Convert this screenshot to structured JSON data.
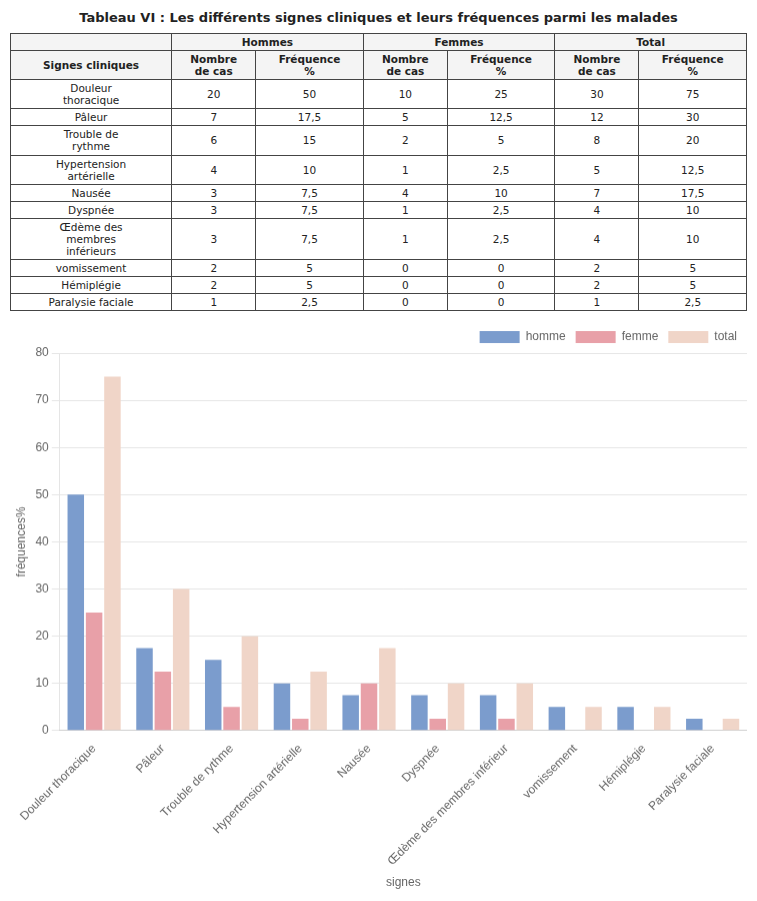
{
  "chart_data": [
    {
      "type": "table",
      "title": "Tableau VI : Les différents signes cliniques et leurs fréquences parmi les malades",
      "column_groups": [
        null,
        "Hommes",
        "Femmes",
        "Total"
      ],
      "columns": [
        "Signes cliniques",
        "Nombre\nde cas",
        "Fréquence\n%",
        "Nombre\nde cas",
        "Fréquence\n%",
        "Nombre\nde cas",
        "Fréquence\n%"
      ],
      "rows": [
        [
          "Douleur\nthoracique",
          "20",
          "50",
          "10",
          "25",
          "30",
          "75"
        ],
        [
          "Pâleur",
          "7",
          "17,5",
          "5",
          "12,5",
          "12",
          "30"
        ],
        [
          "Trouble de\nrythme",
          "6",
          "15",
          "2",
          "5",
          "8",
          "20"
        ],
        [
          "Hypertension\nartérielle",
          "4",
          "10",
          "1",
          "2,5",
          "5",
          "12,5"
        ],
        [
          "Nausée",
          "3",
          "7,5",
          "4",
          "10",
          "7",
          "17,5"
        ],
        [
          "Dyspnée",
          "3",
          "7,5",
          "1",
          "2,5",
          "4",
          "10"
        ],
        [
          "Œdème des\nmembres\ninférieurs",
          "3",
          "7,5",
          "1",
          "2,5",
          "4",
          "10"
        ],
        [
          "vomissement",
          "2",
          "5",
          "0",
          "0",
          "2",
          "5"
        ],
        [
          "Hémiplégie",
          "2",
          "5",
          "0",
          "0",
          "2",
          "5"
        ],
        [
          "Paralysie faciale",
          "1",
          "2,5",
          "0",
          "0",
          "1",
          "2,5"
        ]
      ]
    },
    {
      "type": "bar",
      "xlabel": "signes",
      "ylabel": "fréquences%",
      "categories": [
        "Douleur thoracique",
        "Pâleur",
        "Trouble de rythme",
        "Hypertension artérielle",
        "Nausée",
        "Dyspnée",
        "Œdème des membres inférieur",
        "vomissement",
        "Hémiplégie",
        "Paralysie faciale"
      ],
      "series": [
        {
          "name": "homme",
          "color": "#7b9ccd",
          "values": [
            50,
            17.5,
            15,
            10,
            7.5,
            7.5,
            7.5,
            5,
            5,
            2.5
          ]
        },
        {
          "name": "femme",
          "color": "#e8a0a8",
          "values": [
            25,
            12.5,
            5,
            2.5,
            10,
            2.5,
            2.5,
            0,
            0,
            0
          ]
        },
        {
          "name": "total",
          "color": "#f0d5c8",
          "values": [
            75,
            30,
            20,
            12.5,
            17.5,
            10,
            10,
            5,
            5,
            2.5
          ]
        }
      ],
      "ylim": [
        0,
        80
      ],
      "yticks": [
        0,
        10,
        20,
        30,
        40,
        50,
        60,
        70,
        80
      ],
      "grid": true,
      "legend": "upper right"
    }
  ]
}
